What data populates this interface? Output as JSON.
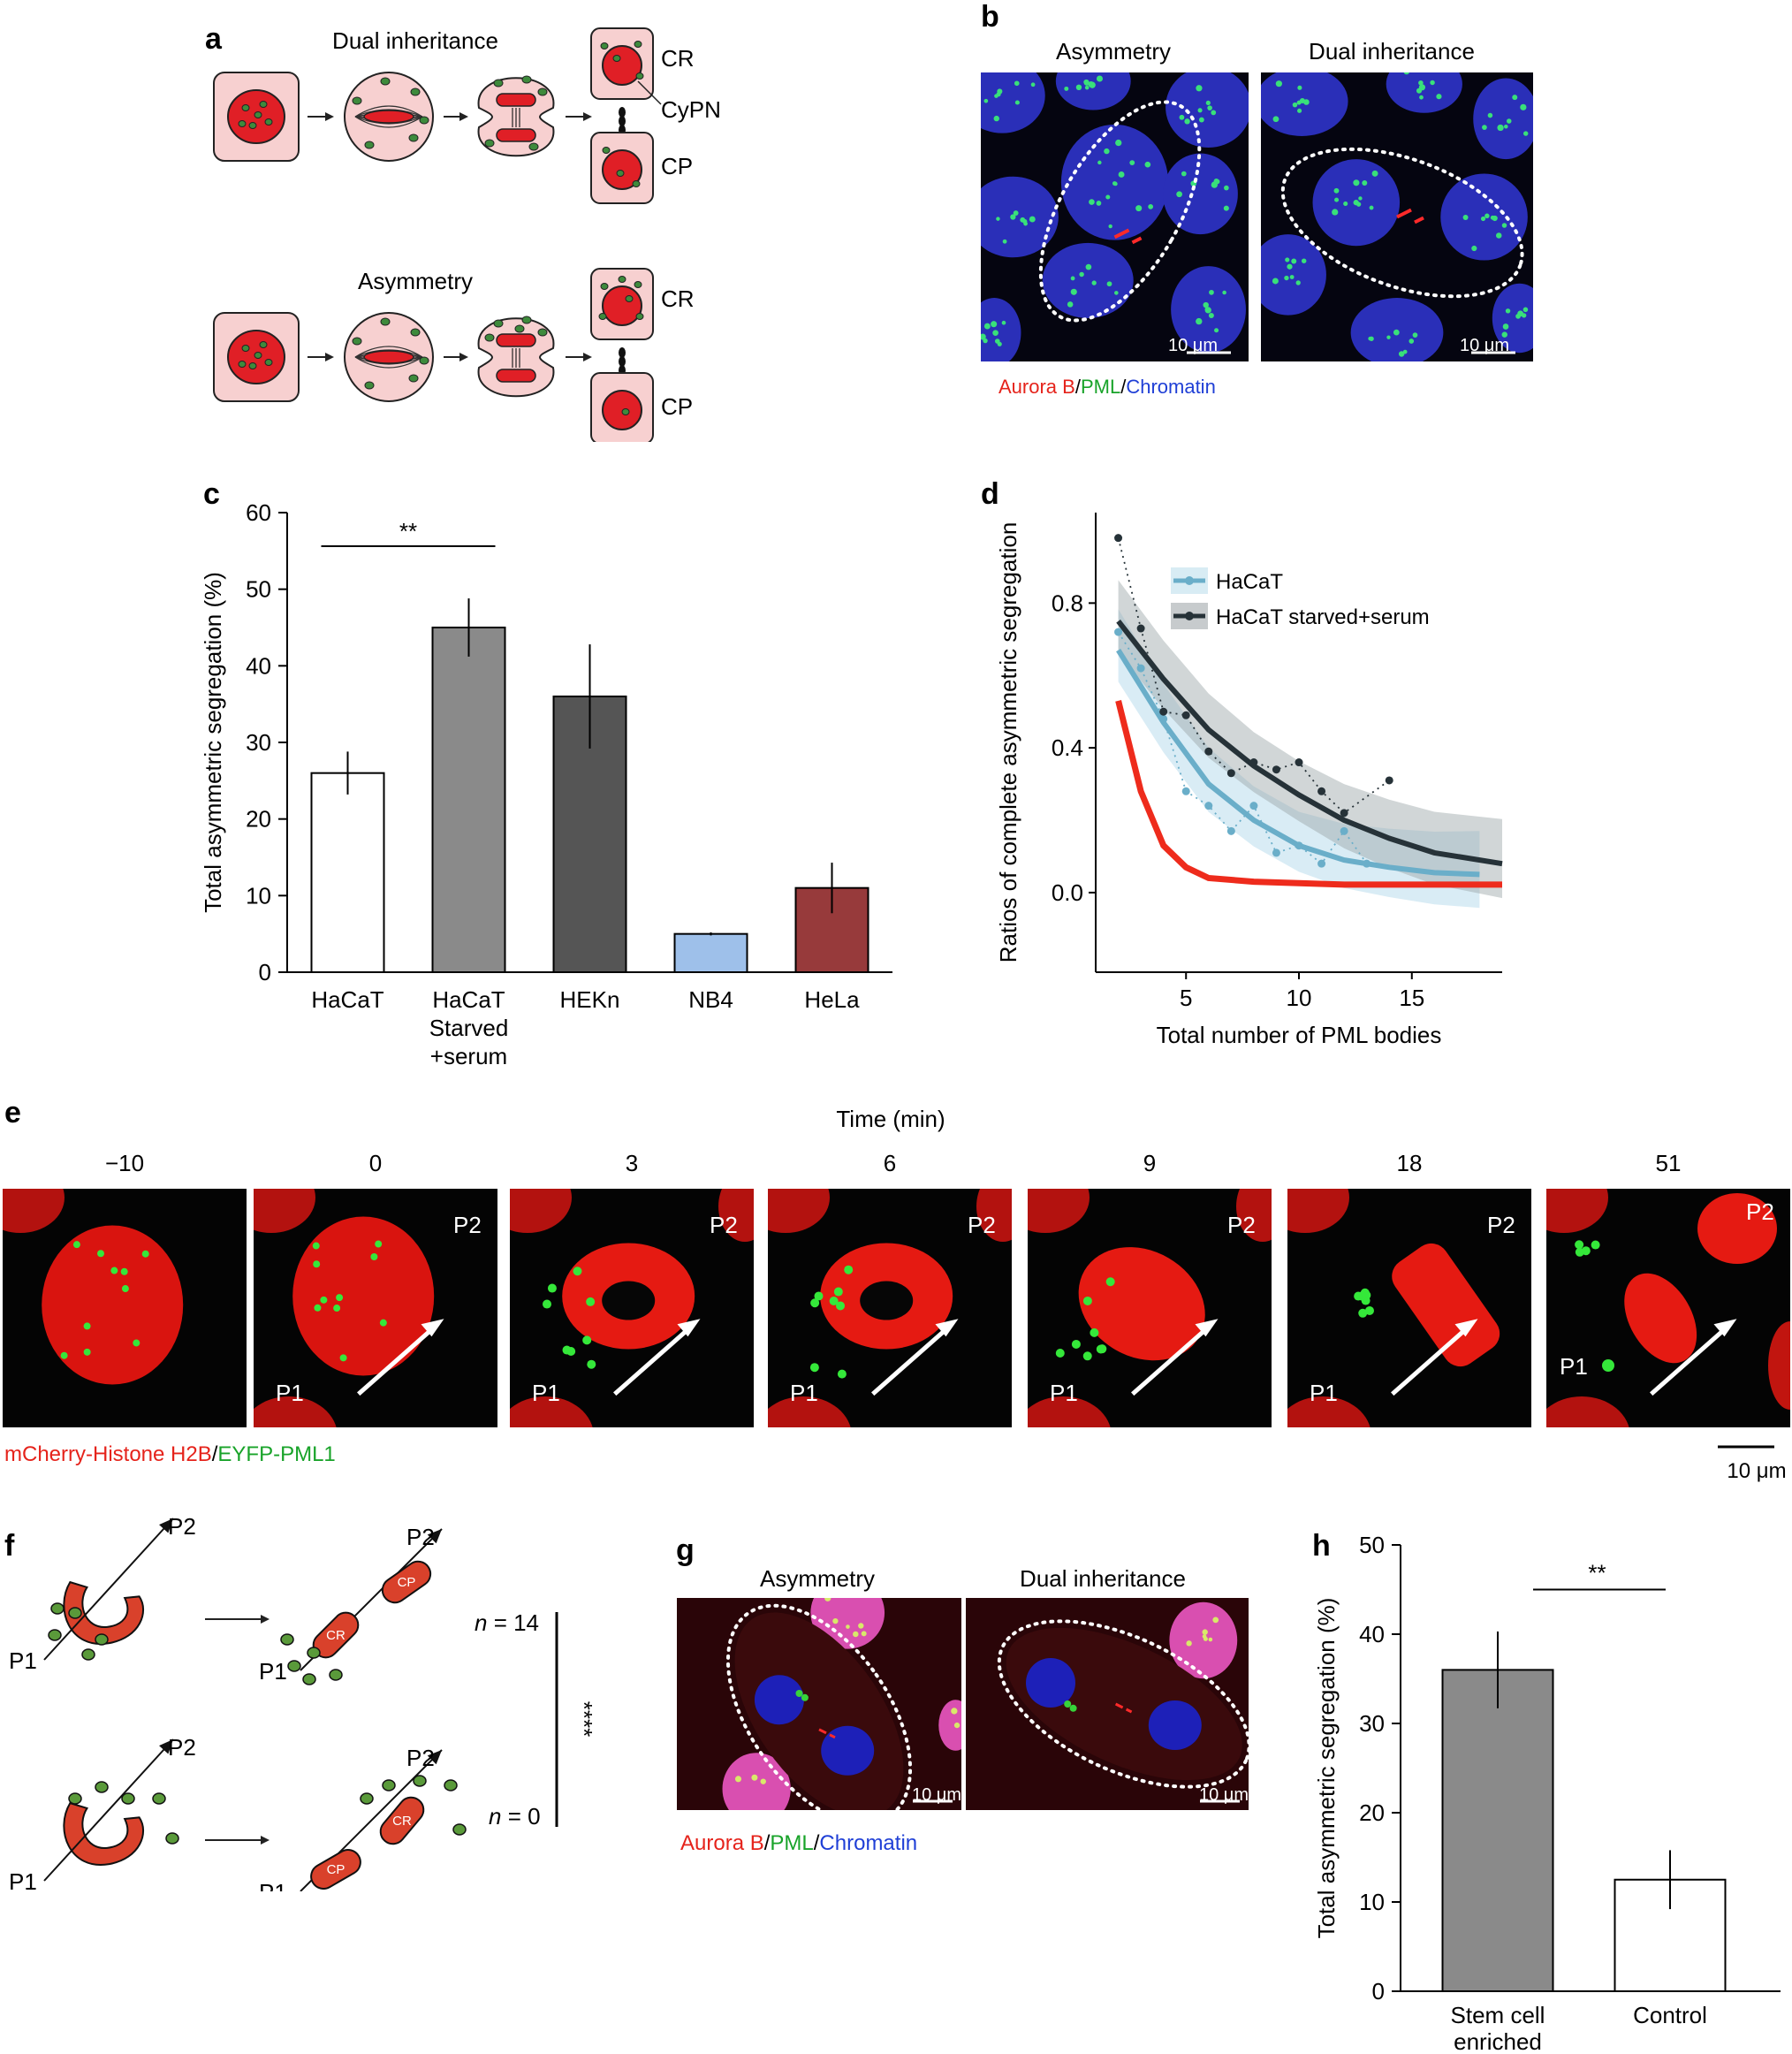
{
  "panels": {
    "a": "a",
    "b": "b",
    "c": "c",
    "d": "d",
    "e": "e",
    "f": "f",
    "g": "g",
    "h": "h"
  },
  "panel_a": {
    "dual_title": "Dual inheritance",
    "asym_title": "Asymmetry",
    "cr": "CR",
    "cp": "CP",
    "cypn": "CyPN"
  },
  "panel_b": {
    "asym_title": "Asymmetry",
    "dual_title": "Dual inheritance",
    "scale": "10 μm",
    "legend": {
      "aurora": "Aurora B",
      "sep1": "/",
      "pml": "PML",
      "sep2": "/",
      "chromatin": "Chromatin"
    }
  },
  "panel_e": {
    "time_label": "Time (min)",
    "times": [
      "−10",
      "0",
      "3",
      "6",
      "9",
      "18",
      "51"
    ],
    "p1": "P1",
    "p2": "P2",
    "legend": {
      "h2b": "mCherry-Histone H2B",
      "sep": "/",
      "pml": "EYFP-PML1"
    },
    "scale": "10 μm"
  },
  "panel_f": {
    "p1": "P1",
    "p2": "P2",
    "cr": "CR",
    "cp": "CP",
    "n_top": "n = 14",
    "n_bottom": "n = 0",
    "sig": "****"
  },
  "panel_g": {
    "asym_title": "Asymmetry",
    "dual_title": "Dual inheritance",
    "scale": "10 μm",
    "legend": {
      "aurora": "Aurora B",
      "sep1": "/",
      "pml": "PML",
      "sep2": "/",
      "chromatin": "Chromatin"
    }
  },
  "colors": {
    "red": "#e5231b",
    "green": "#18a329",
    "blue": "#1f3fd6",
    "cell_pink": "#f7d0d0",
    "nucleus_red": "#e01f26",
    "chrom_orange": "#d9412b",
    "pml_green": "#3e8a3c"
  },
  "chart_data": [
    {
      "id": "c",
      "type": "bar",
      "ylabel": "Total asymmetric segregation (%)",
      "ylim": [
        0,
        60
      ],
      "yticks": [
        0,
        10,
        20,
        30,
        40,
        50,
        60
      ],
      "categories": [
        "HaCaT",
        "HaCaT\nStarved\n+serum",
        "HEKn",
        "NB4",
        "HeLa"
      ],
      "values": [
        26,
        45,
        36,
        5,
        11
      ],
      "errors": [
        2.8,
        3.8,
        6.8,
        0.2,
        3.3
      ],
      "bar_colors": [
        "#ffffff",
        "#8a8a8a",
        "#555555",
        "#9ec0ea",
        "#973a3b"
      ],
      "significance": {
        "between": [
          0,
          1
        ],
        "label": "**"
      }
    },
    {
      "id": "d",
      "type": "scatter",
      "xlabel": "Total number of PML bodies",
      "ylabel": "Ratios of complete asymmetric segregation",
      "xlim": [
        1,
        19
      ],
      "ylim": [
        -0.22,
        1.05
      ],
      "xticks": [
        5,
        10,
        15
      ],
      "yticks": [
        0.0,
        0.4,
        0.8
      ],
      "series": [
        {
          "name": "HaCaT",
          "color": "#6aaec9",
          "x": [
            2,
            3,
            4,
            5,
            6,
            7,
            8,
            9,
            10,
            11,
            12,
            13
          ],
          "y": [
            0.72,
            0.62,
            0.48,
            0.28,
            0.24,
            0.17,
            0.24,
            0.11,
            0.13,
            0.08,
            0.17,
            0.08
          ],
          "fit": [
            [
              2,
              0.67
            ],
            [
              4,
              0.47
            ],
            [
              6,
              0.3
            ],
            [
              8,
              0.2
            ],
            [
              10,
              0.13
            ],
            [
              12,
              0.09
            ],
            [
              14,
              0.07
            ],
            [
              16,
              0.055
            ],
            [
              18,
              0.05
            ]
          ]
        },
        {
          "name": "HaCaT starved+serum",
          "color": "#263238",
          "x": [
            2,
            3,
            4,
            5,
            6,
            7,
            8,
            9,
            10,
            11,
            12,
            14
          ],
          "y": [
            0.98,
            0.73,
            0.5,
            0.49,
            0.39,
            0.33,
            0.36,
            0.34,
            0.36,
            0.28,
            0.22,
            0.31
          ],
          "fit": [
            [
              2,
              0.75
            ],
            [
              4,
              0.59
            ],
            [
              6,
              0.45
            ],
            [
              8,
              0.35
            ],
            [
              10,
              0.27
            ],
            [
              12,
              0.2
            ],
            [
              14,
              0.15
            ],
            [
              16,
              0.11
            ],
            [
              19,
              0.08
            ]
          ]
        },
        {
          "name": "",
          "color": "#ee2b1c",
          "fit": [
            [
              2,
              0.53
            ],
            [
              3,
              0.28
            ],
            [
              4,
              0.13
            ],
            [
              5,
              0.07
            ],
            [
              6,
              0.04
            ],
            [
              8,
              0.03
            ],
            [
              12,
              0.022
            ],
            [
              19,
              0.022
            ]
          ]
        }
      ]
    },
    {
      "id": "h",
      "type": "bar",
      "ylabel": "Total asymmetric segregation (%)",
      "ylim": [
        0,
        50
      ],
      "yticks": [
        0,
        10,
        20,
        30,
        40,
        50
      ],
      "categories": [
        "Stem cell\nenriched",
        "Control"
      ],
      "values": [
        36,
        12.5
      ],
      "errors": [
        4.3,
        3.3
      ],
      "bar_colors": [
        "#8a8a8a",
        "#ffffff"
      ],
      "significance": {
        "between": [
          0,
          1
        ],
        "label": "**"
      }
    }
  ]
}
